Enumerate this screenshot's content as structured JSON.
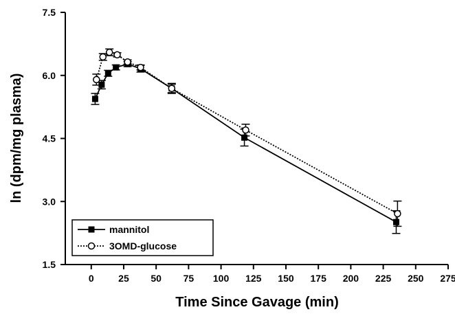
{
  "chart_data": {
    "type": "line",
    "xlabel": "Time Since Gavage (min)",
    "ylabel": "ln (dpm/mg plasma)",
    "xlim": [
      -20,
      275
    ],
    "xticks": [
      0,
      25,
      50,
      75,
      100,
      125,
      150,
      175,
      200,
      225,
      250,
      275
    ],
    "ylim": [
      1.5,
      7.5
    ],
    "yticks": [
      1.5,
      {
        "value": 3,
        "label": "3.0"
      },
      4.5,
      {
        "value": 6,
        "label": "6.0"
      },
      7.5
    ],
    "legend": "lower left",
    "series": [
      {
        "name": "mannitol",
        "color": "#000000",
        "marker": "square",
        "dash": "solid",
        "x": [
          3,
          8,
          13,
          19,
          28,
          38,
          62,
          118,
          235
        ],
        "values": [
          5.44,
          5.78,
          6.05,
          6.19,
          6.27,
          6.16,
          5.69,
          4.52,
          2.51
        ],
        "errors": [
          0.13,
          0.1,
          0.07,
          0.06,
          0.06,
          0.08,
          0.12,
          0.2,
          0.27
        ]
      },
      {
        "name": "3OMD-glucose",
        "color": "#000000",
        "marker": "circle",
        "dash": "dotted",
        "x": [
          4,
          9,
          14,
          20,
          28,
          38,
          62,
          119,
          236
        ],
        "values": [
          5.9,
          6.44,
          6.55,
          6.49,
          6.32,
          6.19,
          5.69,
          4.7,
          2.71
        ],
        "errors": [
          0.13,
          0.08,
          0.08,
          0.05,
          0.05,
          0.06,
          0.1,
          0.14,
          0.3
        ]
      }
    ]
  }
}
